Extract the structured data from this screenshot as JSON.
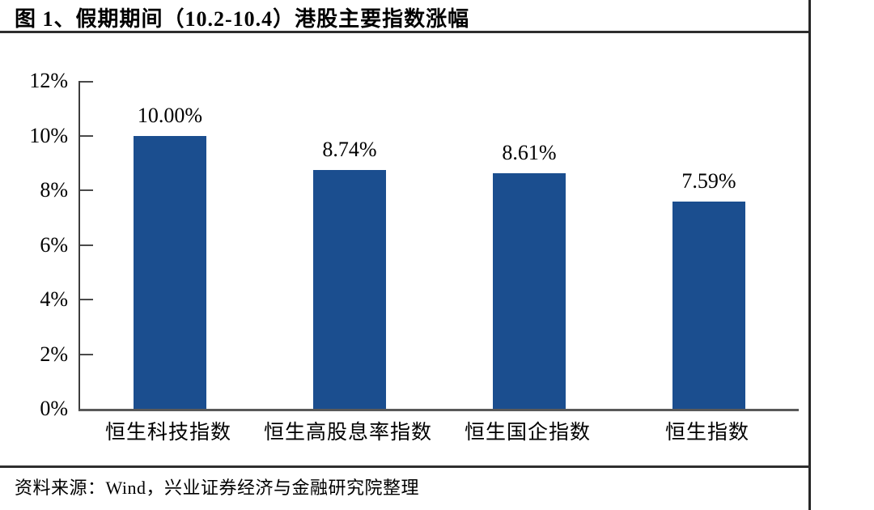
{
  "title": "图 1、假期期间（10.2-10.4）港股主要指数涨幅",
  "source": "资料来源：Wind，兴业证券经济与金融研究院整理",
  "colors": {
    "bar": "#1B4E8F",
    "axis": "#3d3d3d",
    "rule": "#2e2e2e",
    "text": "#000000"
  },
  "chart_data": {
    "type": "bar",
    "title": "假期期间（10.2-10.4）港股主要指数涨幅",
    "categories": [
      "恒生科技指数",
      "恒生高股息率指数",
      "恒生国企指数",
      "恒生指数"
    ],
    "values": [
      10.0,
      8.74,
      8.61,
      7.59
    ],
    "value_labels": [
      "10.00%",
      "8.74%",
      "8.61%",
      "7.59%"
    ],
    "xlabel": "",
    "ylabel": "",
    "ylim": [
      0,
      12
    ],
    "ytick_step": 2,
    "ytick_labels": [
      "0%",
      "2%",
      "4%",
      "6%",
      "8%",
      "10%",
      "12%"
    ],
    "grid": false,
    "legend": "none",
    "bar_color": "#1B4E8F"
  }
}
